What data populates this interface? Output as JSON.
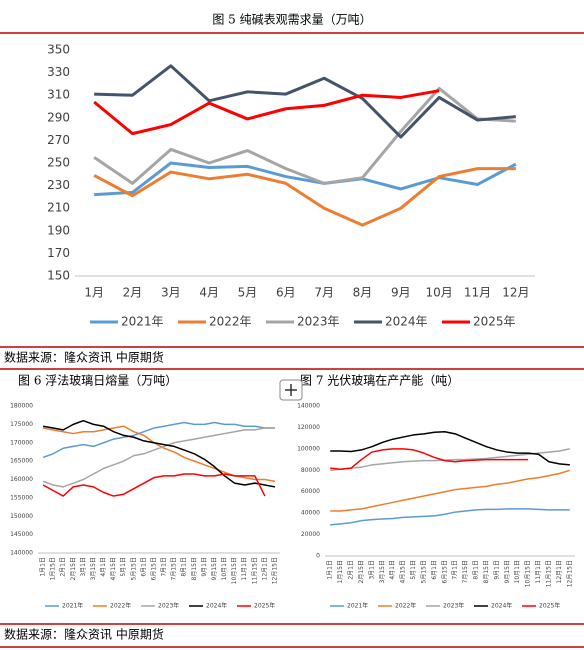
{
  "chart_data": [
    {
      "type": "line",
      "title": "图 5 纯碱表观需求量（万吨）",
      "categories": [
        "1月",
        "2月",
        "3月",
        "4月",
        "5月",
        "6月",
        "7月",
        "8月",
        "9月",
        "10月",
        "11月",
        "12月"
      ],
      "ylim": [
        150,
        350
      ],
      "yticks": [
        150,
        170,
        190,
        210,
        230,
        250,
        270,
        290,
        310,
        330,
        350
      ],
      "grid": false,
      "series": [
        {
          "name": "2021年",
          "color": "#5b9bd5",
          "values": [
            222,
            224,
            250,
            246,
            247,
            238,
            232,
            236,
            227,
            237,
            231,
            249
          ]
        },
        {
          "name": "2022年",
          "color": "#ed7d31",
          "values": [
            239,
            221,
            242,
            236,
            240,
            232,
            210,
            195,
            210,
            238,
            245,
            245
          ]
        },
        {
          "name": "2023年",
          "color": "#a5a5a5",
          "values": [
            255,
            232,
            262,
            250,
            261,
            245,
            232,
            237,
            278,
            316,
            289,
            287
          ]
        },
        {
          "name": "2024年",
          "color": "#44546a",
          "values": [
            311,
            310,
            336,
            305,
            313,
            311,
            325,
            307,
            273,
            308,
            288,
            291
          ]
        },
        {
          "name": "2025年",
          "color": "#ff0000",
          "values": [
            304,
            276,
            284,
            303,
            289,
            298,
            301,
            310,
            308,
            314,
            null,
            null
          ]
        }
      ]
    },
    {
      "type": "line",
      "title": "图 6 浮法玻璃日熔量（万吨）",
      "categories": [
        "1月1日",
        "1月15日",
        "2月1日",
        "2月15日",
        "3月1日",
        "3月15日",
        "4月1日",
        "4月15日",
        "5月1日",
        "5月15日",
        "6月1日",
        "6月15日",
        "7月1日",
        "7月15日",
        "8月1日",
        "8月15日",
        "9月1日",
        "9月15日",
        "10月1日",
        "10月15日",
        "11月1日",
        "11月15日",
        "12月1日",
        "12月15日"
      ],
      "ylim": [
        140000,
        180000
      ],
      "yticks": [
        140000,
        145000,
        150000,
        155000,
        160000,
        165000,
        170000,
        175000,
        180000
      ],
      "grid": false,
      "series": [
        {
          "name": "2021年",
          "color": "#5b9bd5",
          "values": [
            166000,
            167000,
            168500,
            169000,
            169500,
            169000,
            170000,
            171000,
            171500,
            172000,
            173000,
            174000,
            174500,
            175000,
            175500,
            175000,
            175000,
            175500,
            175000,
            175000,
            174500,
            174500,
            174000,
            174000
          ]
        },
        {
          "name": "2022年",
          "color": "#ed7d31",
          "values": [
            174000,
            173500,
            173000,
            172500,
            173000,
            173000,
            173500,
            174000,
            174500,
            173000,
            172000,
            170000,
            168500,
            167500,
            166000,
            165000,
            164000,
            163000,
            162000,
            161000,
            160500,
            160000,
            160000,
            159500
          ]
        },
        {
          "name": "2023年",
          "color": "#a5a5a5",
          "values": [
            159500,
            158500,
            158000,
            159000,
            160000,
            161500,
            163000,
            164000,
            165000,
            166500,
            167000,
            168000,
            169000,
            170000,
            170500,
            171000,
            171500,
            172000,
            172500,
            173000,
            173500,
            173500,
            174000,
            174000
          ]
        },
        {
          "name": "2024年",
          "color": "#000000",
          "values": [
            174500,
            174000,
            173500,
            175000,
            176000,
            175000,
            174500,
            173000,
            172000,
            171500,
            170500,
            170000,
            169500,
            169000,
            168000,
            167000,
            165500,
            163500,
            161000,
            159000,
            158500,
            159000,
            158500,
            158000
          ]
        },
        {
          "name": "2025年",
          "color": "#ff0000",
          "values": [
            158500,
            157000,
            155500,
            158000,
            158500,
            158000,
            156500,
            155500,
            156000,
            157500,
            159000,
            160500,
            161000,
            161000,
            161500,
            161500,
            161000,
            161000,
            161500,
            161000,
            161000,
            161000,
            155500,
            null
          ]
        }
      ]
    },
    {
      "type": "line",
      "title": "图 7 光伏玻璃在产产能（吨）",
      "categories": [
        "1月1日",
        "1月15日",
        "2月1日",
        "2月15日",
        "3月1日",
        "3月15日",
        "4月1日",
        "4月15日",
        "5月1日",
        "5月15日",
        "6月1日",
        "6月15日",
        "7月1日",
        "7月15日",
        "8月1日",
        "8月15日",
        "9月1日",
        "9月15日",
        "10月1日",
        "10月15日",
        "11月1日",
        "11月15日",
        "12月1日",
        "12月15日"
      ],
      "ylim": [
        0,
        140000
      ],
      "yticks": [
        0,
        20000,
        40000,
        60000,
        80000,
        100000,
        120000,
        140000
      ],
      "grid": false,
      "series": [
        {
          "name": "2021年",
          "color": "#5b9bd5",
          "values": [
            29000,
            30000,
            31000,
            33000,
            34000,
            34500,
            35000,
            36000,
            36500,
            37000,
            37500,
            39000,
            41000,
            42000,
            43000,
            43500,
            43500,
            44000,
            44000,
            44000,
            43500,
            43000,
            43000,
            43000
          ]
        },
        {
          "name": "2022年",
          "color": "#ed7d31",
          "values": [
            42000,
            42000,
            43000,
            44000,
            46000,
            48000,
            50000,
            52000,
            54000,
            56000,
            58000,
            60000,
            62000,
            63000,
            64000,
            65000,
            67000,
            68000,
            70000,
            72000,
            73000,
            75000,
            77000,
            80000
          ]
        },
        {
          "name": "2023年",
          "color": "#a5a5a5",
          "values": [
            80000,
            81000,
            82000,
            83000,
            85000,
            86000,
            87000,
            88000,
            88500,
            89000,
            89000,
            89500,
            90000,
            90000,
            90500,
            91000,
            92000,
            93000,
            94000,
            95000,
            96000,
            97000,
            98000,
            100000
          ]
        },
        {
          "name": "2024年",
          "color": "#000000",
          "values": [
            98000,
            98000,
            97500,
            99000,
            102000,
            106000,
            109000,
            111000,
            113000,
            114000,
            115500,
            116000,
            114000,
            110000,
            106000,
            102000,
            99000,
            97000,
            96000,
            96000,
            95000,
            88000,
            86000,
            85000
          ]
        },
        {
          "name": "2025年",
          "color": "#ff0000",
          "values": [
            82000,
            81000,
            82000,
            90000,
            97000,
            99000,
            100000,
            100000,
            99000,
            96000,
            92000,
            89000,
            88000,
            89000,
            89500,
            90000,
            90000,
            90000,
            90000,
            90000,
            null,
            null,
            null,
            null
          ]
        }
      ]
    }
  ],
  "sources": [
    "数据来源：隆众资讯 中原期货",
    "数据来源：隆众资讯 中原期货"
  ]
}
